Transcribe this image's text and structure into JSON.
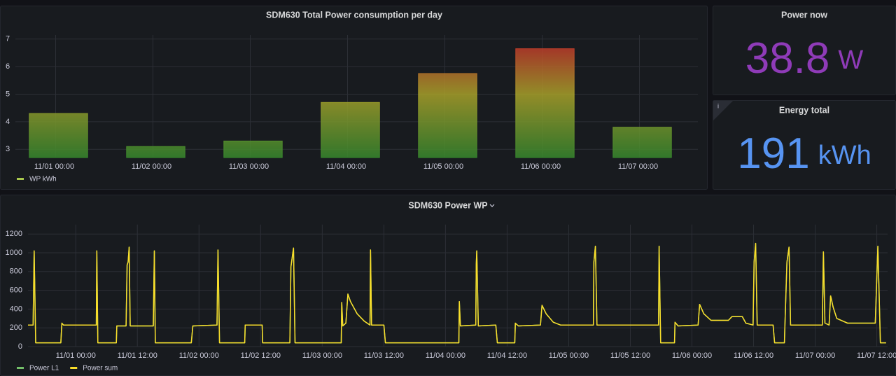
{
  "chart_data": [
    {
      "type": "bar",
      "title": "SDM630 Total Power consumption per day",
      "categories": [
        "11/01 00:00",
        "11/02 00:00",
        "11/03 00:00",
        "11/04 00:00",
        "11/05 00:00",
        "11/06 00:00",
        "11/07 00:00"
      ],
      "series": [
        {
          "name": "WP kWh",
          "color": "#a9c94e",
          "values": [
            4.3,
            3.1,
            3.3,
            4.7,
            5.75,
            6.65,
            3.8
          ]
        }
      ],
      "gradient": [
        "#37872d",
        "#a8a02a",
        "#c4162a"
      ],
      "ylim": [
        2.7,
        7.3
      ],
      "yticks": [
        3,
        4,
        5,
        6,
        7
      ],
      "grid": true
    },
    {
      "type": "line",
      "title": "SDM630 Power WP",
      "x": [
        -9.3,
        -8.3,
        -8.1,
        -7.8,
        -2.9,
        -2.7,
        -2.4,
        4.0,
        4.1,
        4.3,
        7.9,
        8.0,
        9.8,
        10.0,
        10.2,
        10.4,
        10.6,
        15.1,
        15.3,
        15.5,
        22.5,
        22.8,
        27.5,
        27.7,
        28.0,
        32.9,
        33.0,
        36.3,
        36.4,
        41.7,
        41.9,
        42.4,
        42.7,
        51.7,
        51.8,
        52.0,
        52.6,
        53.0,
        53.5,
        54.8,
        56.2,
        57.3,
        57.4,
        57.6,
        60.0,
        60.3,
        74.6,
        74.7,
        74.9,
        77.9,
        78.0,
        78.1,
        78.4,
        81.8,
        82.1,
        85.5,
        85.6,
        86.2,
        90.5,
        90.8,
        91.6,
        93.0,
        94.4,
        100.8,
        100.9,
        101.2,
        101.5,
        113.5,
        113.6,
        113.9,
        116.6,
        116.7,
        117.3,
        121.2,
        121.5,
        122.3,
        123.7,
        127.1,
        127.8,
        129.8,
        130.5,
        131.9,
        132.1,
        132.4,
        132.7,
        135.8,
        136.1,
        138.0,
        138.1,
        138.5,
        138.9,
        139.2,
        145.4,
        145.6,
        145.9,
        146.7,
        147.0,
        147.5,
        148.2,
        150.3,
        155.7,
        156.2,
        156.7,
        157.8
      ],
      "series": [
        {
          "name": "Power L1",
          "color": "#73bf69",
          "values": [
            230,
            230,
            1020,
            40,
            40,
            250,
            230,
            230,
            1020,
            40,
            40,
            220,
            220,
            870,
            900,
            1060,
            220,
            220,
            1020,
            40,
            40,
            220,
            230,
            1030,
            40,
            40,
            230,
            230,
            40,
            40,
            850,
            1050,
            40,
            40,
            470,
            220,
            250,
            560,
            480,
            350,
            270,
            230,
            1030,
            230,
            230,
            40,
            40,
            480,
            220,
            230,
            880,
            1020,
            220,
            230,
            40,
            40,
            250,
            220,
            230,
            440,
            350,
            260,
            230,
            230,
            900,
            1070,
            230,
            230,
            1070,
            40,
            40,
            260,
            220,
            230,
            450,
            350,
            280,
            280,
            320,
            320,
            250,
            230,
            900,
            1100,
            230,
            230,
            40,
            40,
            220,
            900,
            1060,
            230,
            230,
            1010,
            250,
            230,
            540,
            420,
            300,
            250,
            250,
            1070,
            40,
            40
          ]
        },
        {
          "name": "Power sum",
          "color": "#fade2a",
          "values": [
            230,
            230,
            1020,
            40,
            40,
            250,
            230,
            230,
            1020,
            40,
            40,
            220,
            220,
            870,
            900,
            1060,
            220,
            220,
            1020,
            40,
            40,
            220,
            230,
            1030,
            40,
            40,
            230,
            230,
            40,
            40,
            850,
            1050,
            40,
            40,
            470,
            220,
            250,
            560,
            480,
            350,
            270,
            230,
            1030,
            230,
            230,
            40,
            40,
            480,
            220,
            230,
            880,
            1020,
            220,
            230,
            40,
            40,
            250,
            220,
            230,
            440,
            350,
            260,
            230,
            230,
            900,
            1070,
            230,
            230,
            1070,
            40,
            40,
            260,
            220,
            230,
            450,
            350,
            280,
            280,
            320,
            320,
            250,
            230,
            900,
            1100,
            230,
            230,
            40,
            40,
            220,
            900,
            1060,
            230,
            230,
            1010,
            250,
            230,
            540,
            420,
            300,
            250,
            250,
            1070,
            40,
            40
          ]
        }
      ],
      "xlim": [
        -9.3,
        158.1
      ],
      "xticks": [
        {
          "value": 0,
          "label": "11/01 00:00"
        },
        {
          "value": 12,
          "label": "11/01 12:00"
        },
        {
          "value": 24,
          "label": "11/02 00:00"
        },
        {
          "value": 36,
          "label": "11/02 12:00"
        },
        {
          "value": 48,
          "label": "11/03 00:00"
        },
        {
          "value": 60,
          "label": "11/03 12:00"
        },
        {
          "value": 72,
          "label": "11/04 00:00"
        },
        {
          "value": 84,
          "label": "11/04 12:00"
        },
        {
          "value": 96,
          "label": "11/05 00:00"
        },
        {
          "value": 108,
          "label": "11/05 12:00"
        },
        {
          "value": 120,
          "label": "11/06 00:00"
        },
        {
          "value": 132,
          "label": "11/06 12:00"
        },
        {
          "value": 144,
          "label": "11/07 00:00"
        },
        {
          "value": 156,
          "label": "11/07 12:00"
        }
      ],
      "ylim": [
        0,
        1300
      ],
      "yticks": [
        0,
        200,
        400,
        600,
        800,
        1000,
        1200
      ],
      "grid": true
    }
  ],
  "stats": [
    {
      "title": "Power now",
      "value": 38.8,
      "unit": "W",
      "color": "#8f3bb8"
    },
    {
      "title": "Energy total",
      "value": 191,
      "unit": "kWh",
      "color": "#5794f2"
    }
  ]
}
